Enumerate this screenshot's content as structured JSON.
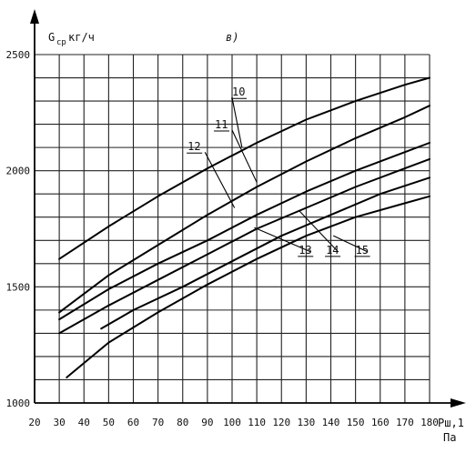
{
  "chart_data": {
    "type": "line",
    "panel_label": "в)",
    "ylabel": "G",
    "ylabel_sub": "ср",
    "ylabel_unit": "кг/ч",
    "xlabel": "Рш,1",
    "xlabel_unit": "Па",
    "xlim": [
      20,
      180
    ],
    "ylim": [
      1000,
      2500
    ],
    "x_ticks": [
      20,
      30,
      40,
      50,
      60,
      70,
      80,
      90,
      100,
      110,
      120,
      130,
      140,
      150,
      160,
      170,
      180
    ],
    "y_ticks": [
      1000,
      1500,
      2000,
      2500
    ],
    "grid": true,
    "series": [
      {
        "name": "10",
        "x": [
          30,
          50,
          70,
          90,
          110,
          130,
          150,
          170,
          180
        ],
        "y": [
          1620,
          1760,
          1890,
          2010,
          2120,
          2220,
          2300,
          2370,
          2400
        ]
      },
      {
        "name": "11",
        "x": [
          30,
          50,
          70,
          90,
          110,
          130,
          150,
          170,
          180
        ],
        "y": [
          1390,
          1550,
          1680,
          1810,
          1930,
          2040,
          2140,
          2230,
          2280
        ]
      },
      {
        "name": "12",
        "x": [
          30,
          50,
          70,
          90,
          110,
          130,
          150,
          170,
          180
        ],
        "y": [
          1360,
          1490,
          1600,
          1700,
          1810,
          1910,
          2000,
          2080,
          2120
        ]
      },
      {
        "name": "13",
        "x": [
          30,
          50,
          70,
          90,
          110,
          130,
          150,
          170,
          180
        ],
        "y": [
          1300,
          1420,
          1530,
          1640,
          1750,
          1840,
          1930,
          2010,
          2050
        ]
      },
      {
        "name": "14",
        "x": [
          47,
          60,
          80,
          100,
          120,
          140,
          160,
          180
        ],
        "y": [
          1320,
          1400,
          1500,
          1610,
          1720,
          1810,
          1900,
          1970
        ]
      },
      {
        "name": "15",
        "x": [
          33,
          50,
          70,
          90,
          110,
          130,
          150,
          170,
          180
        ],
        "y": [
          1110,
          1260,
          1390,
          1510,
          1620,
          1720,
          1800,
          1860,
          1890
        ]
      }
    ],
    "callouts": [
      {
        "label": "10",
        "label_x": 100,
        "label_y": 2315,
        "line": [
          [
            100,
            2315
          ],
          [
            104,
            2100
          ]
        ]
      },
      {
        "label": "11",
        "label_x": 93,
        "label_y": 2175,
        "line": [
          [
            100,
            2175
          ],
          [
            110,
            1950
          ]
        ]
      },
      {
        "label": "12",
        "label_x": 82,
        "label_y": 2080,
        "line": [
          [
            89,
            2080
          ],
          [
            101,
            1840
          ]
        ]
      },
      {
        "label": "13",
        "label_x": 127,
        "label_y": 1635,
        "line": [
          [
            132,
            1650
          ],
          [
            109,
            1755
          ]
        ]
      },
      {
        "label": "14",
        "label_x": 138,
        "label_y": 1635,
        "line": [
          [
            143,
            1650
          ],
          [
            127,
            1830
          ]
        ]
      },
      {
        "label": "15",
        "label_x": 150,
        "label_y": 1635,
        "line": [
          [
            155,
            1650
          ],
          [
            141,
            1720
          ]
        ]
      }
    ]
  }
}
